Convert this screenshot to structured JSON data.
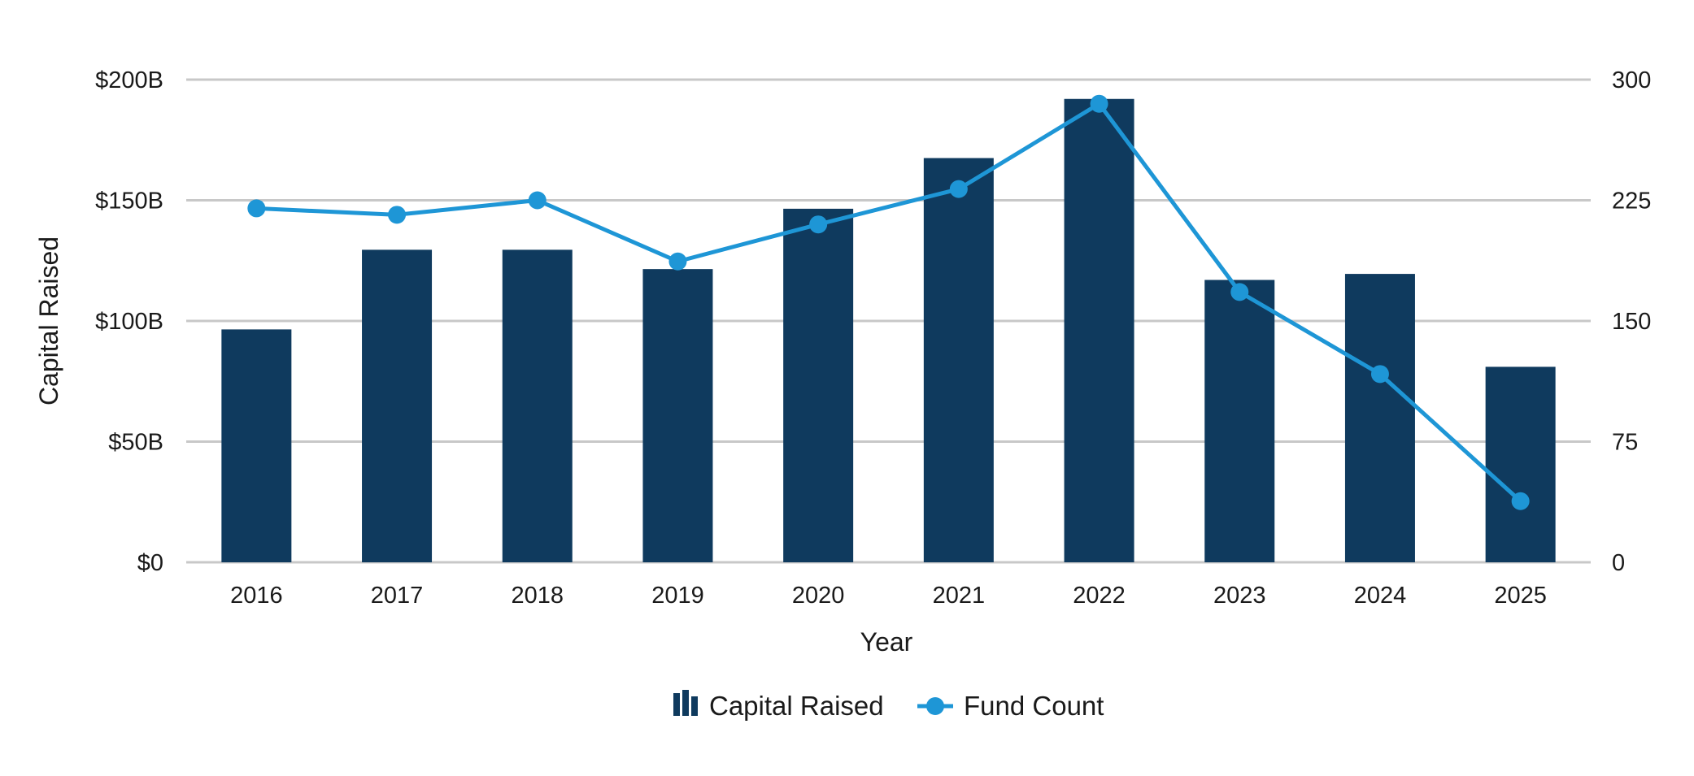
{
  "colors": {
    "bar": "#0f3a5e",
    "line": "#1e96d6",
    "grid": "#c8c8c8",
    "text": "#1a1a1a"
  },
  "chart_data": {
    "type": "bar",
    "combo": "bar+line",
    "title": "",
    "xlabel": "Year",
    "ylabel": "Capital Raised",
    "y2label": "",
    "categories": [
      "2016",
      "2017",
      "2018",
      "2019",
      "2020",
      "2021",
      "2022",
      "2023",
      "2024",
      "2025"
    ],
    "ylim": [
      0,
      200
    ],
    "y2lim": [
      0,
      300
    ],
    "yticks": [
      0,
      50,
      100,
      150,
      200
    ],
    "ytick_labels": [
      "$0",
      "$50B",
      "$100B",
      "$150B",
      "$200B"
    ],
    "y2ticks": [
      0,
      75,
      150,
      225,
      300
    ],
    "y2tick_labels": [
      "0",
      "75",
      "150",
      "225",
      "300"
    ],
    "grid": true,
    "legend_position": "bottom-center",
    "series": [
      {
        "name": "Capital Raised",
        "type": "bar",
        "axis": "left",
        "unit": "$B",
        "values": [
          96.5,
          129.5,
          129.5,
          121.5,
          146.5,
          167.5,
          192,
          117,
          119.5,
          81
        ]
      },
      {
        "name": "Fund Count",
        "type": "line",
        "axis": "right",
        "values": [
          220,
          216,
          225,
          187,
          210,
          232,
          285,
          168,
          117,
          38
        ]
      }
    ]
  }
}
